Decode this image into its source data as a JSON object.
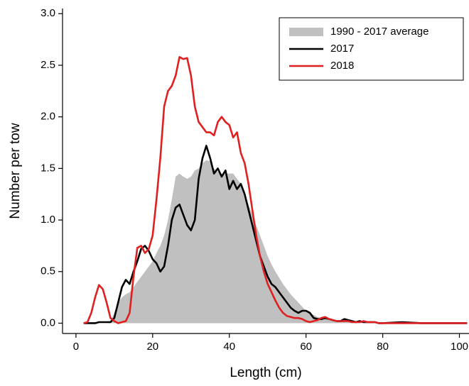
{
  "chart_data": {
    "type": "line",
    "xlabel": "Length (cm)",
    "ylabel": "Number per tow",
    "x": [
      2,
      3,
      4,
      5,
      6,
      7,
      8,
      9,
      10,
      11,
      12,
      13,
      14,
      15,
      16,
      17,
      18,
      19,
      20,
      21,
      22,
      23,
      24,
      25,
      26,
      27,
      28,
      29,
      30,
      31,
      32,
      33,
      34,
      35,
      36,
      37,
      38,
      39,
      40,
      41,
      42,
      43,
      44,
      45,
      46,
      47,
      48,
      49,
      50,
      51,
      52,
      53,
      54,
      55,
      56,
      57,
      58,
      59,
      60,
      61,
      62,
      63,
      64,
      65,
      66,
      67,
      68,
      69,
      70,
      71,
      72,
      73,
      74,
      75,
      76,
      77,
      78,
      79,
      80,
      85,
      90,
      95,
      100,
      102
    ],
    "series": [
      {
        "name": "1990 - 2017 average",
        "color": "#c0c0c0",
        "style": "area",
        "values": [
          0,
          0,
          0,
          0,
          0,
          0,
          0,
          0.02,
          0.1,
          0.2,
          0.25,
          0.28,
          0.3,
          0.35,
          0.4,
          0.45,
          0.5,
          0.55,
          0.6,
          0.68,
          0.75,
          0.85,
          1.0,
          1.2,
          1.42,
          1.45,
          1.42,
          1.4,
          1.42,
          1.48,
          1.5,
          1.55,
          1.58,
          1.57,
          1.5,
          1.47,
          1.45,
          1.45,
          1.45,
          1.45,
          1.4,
          1.35,
          1.25,
          1.15,
          1.05,
          0.95,
          0.85,
          0.75,
          0.65,
          0.57,
          0.5,
          0.44,
          0.38,
          0.33,
          0.28,
          0.24,
          0.2,
          0.16,
          0.12,
          0.1,
          0.08,
          0.06,
          0.05,
          0.04,
          0.03,
          0.03,
          0.02,
          0.02,
          0.01,
          0.01,
          0.01,
          0.01,
          0.01,
          0.01,
          0.01,
          0.01,
          0.01,
          0,
          0,
          0,
          0,
          0,
          0,
          0
        ]
      },
      {
        "name": "2017",
        "color": "#000000",
        "style": "line",
        "values": [
          0,
          0,
          0,
          0,
          0.01,
          0.01,
          0.01,
          0.01,
          0.05,
          0.2,
          0.35,
          0.42,
          0.38,
          0.5,
          0.6,
          0.72,
          0.75,
          0.7,
          0.62,
          0.58,
          0.5,
          0.55,
          0.75,
          1.0,
          1.12,
          1.15,
          1.05,
          0.95,
          0.9,
          1.0,
          1.4,
          1.6,
          1.72,
          1.6,
          1.45,
          1.5,
          1.42,
          1.48,
          1.3,
          1.38,
          1.3,
          1.35,
          1.25,
          1.1,
          0.95,
          0.8,
          0.65,
          0.55,
          0.45,
          0.38,
          0.35,
          0.3,
          0.25,
          0.2,
          0.15,
          0.12,
          0.1,
          0.12,
          0.12,
          0.1,
          0.05,
          0.04,
          0.04,
          0.05,
          0.04,
          0.03,
          0.02,
          0.02,
          0.04,
          0.03,
          0.02,
          0.01,
          0.02,
          0.01,
          0.01,
          0.01,
          0.01,
          0,
          0,
          0.01,
          0,
          0,
          0,
          0
        ]
      },
      {
        "name": "2018",
        "color": "#e02020",
        "style": "line",
        "values": [
          0,
          0.01,
          0.1,
          0.25,
          0.37,
          0.33,
          0.2,
          0.05,
          0.02,
          0,
          0.01,
          0.02,
          0.1,
          0.45,
          0.73,
          0.75,
          0.68,
          0.72,
          0.85,
          1.2,
          1.6,
          2.1,
          2.25,
          2.3,
          2.4,
          2.58,
          2.56,
          2.57,
          2.4,
          2.1,
          1.95,
          1.9,
          1.85,
          1.85,
          1.82,
          1.95,
          2.0,
          1.95,
          1.92,
          1.8,
          1.85,
          1.65,
          1.55,
          1.35,
          1.1,
          0.85,
          0.65,
          0.5,
          0.38,
          0.3,
          0.22,
          0.15,
          0.1,
          0.07,
          0.06,
          0.05,
          0.05,
          0.04,
          0.02,
          0.01,
          0.02,
          0.03,
          0.05,
          0.06,
          0.04,
          0.03,
          0.02,
          0.02,
          0.02,
          0.02,
          0.01,
          0.01,
          0.01,
          0.02,
          0.01,
          0.01,
          0.01,
          0,
          0,
          0,
          0,
          0,
          0,
          0
        ]
      }
    ],
    "xlim": [
      -3.5,
      102.5
    ],
    "xticks": [
      0,
      20,
      40,
      60,
      80,
      100
    ],
    "ylim": [
      -0.1,
      3.05
    ],
    "yticks": [
      {
        "value": 0,
        "label": "0.0"
      },
      0.5,
      {
        "value": 1,
        "label": "1.0"
      },
      1.5,
      {
        "value": 2,
        "label": "2.0"
      },
      2.5,
      {
        "value": 3,
        "label": "3.0"
      }
    ],
    "grid": false,
    "legend": "upper right"
  }
}
